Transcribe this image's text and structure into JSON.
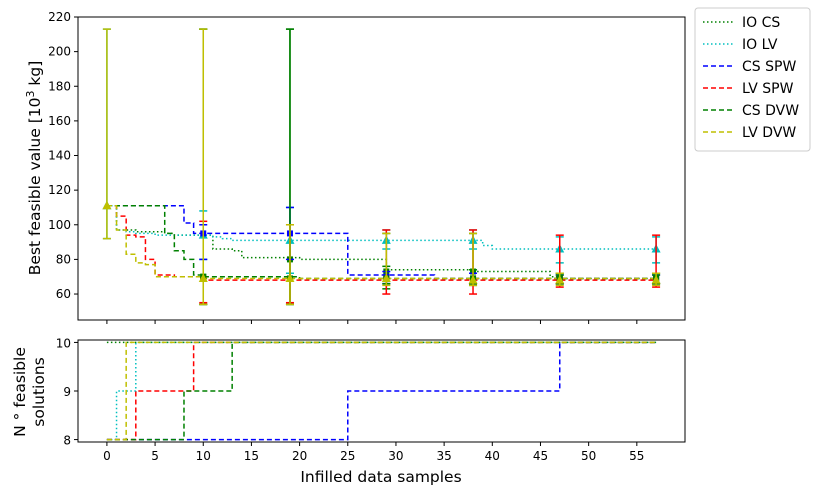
{
  "chart_data": [
    {
      "type": "line",
      "ylabel": "Best feasible value [10",
      "ylabel_sup": "3",
      "ylabel_end": " kg]",
      "xlim": [
        -3,
        60
      ],
      "ylim": [
        45,
        220
      ],
      "xticks": [
        0,
        5,
        10,
        15,
        20,
        25,
        30,
        35,
        40,
        45,
        50,
        55
      ],
      "yticks": [
        60,
        80,
        100,
        120,
        140,
        160,
        180,
        200,
        220
      ],
      "grid": false,
      "legend_position": "outside-right",
      "series": [
        {
          "name": "IO CS",
          "color": "#008000",
          "style": "dotted",
          "x": [
            0,
            1,
            3,
            6,
            7,
            10,
            11,
            13,
            14,
            19,
            20,
            28,
            29,
            37,
            38,
            46,
            47,
            57
          ],
          "y": [
            111,
            97,
            96,
            95,
            94,
            94,
            86,
            85,
            81,
            81,
            80,
            80,
            74,
            74,
            73,
            70,
            69,
            69
          ]
        },
        {
          "name": "IO LV",
          "color": "#00bfbf",
          "style": "dotted",
          "x": [
            0,
            1,
            2,
            3,
            5,
            10,
            11,
            12,
            13,
            29,
            38,
            39,
            40,
            57
          ],
          "y": [
            111,
            97,
            96,
            95,
            94,
            94,
            93,
            92,
            91,
            91,
            91,
            88,
            86,
            86
          ]
        },
        {
          "name": "CS SPW",
          "color": "#0000ff",
          "style": "dashed",
          "x": [
            0,
            7,
            8,
            9,
            19,
            24,
            25,
            33,
            34,
            57
          ],
          "y": [
            111,
            111,
            101,
            95,
            95,
            95,
            71,
            71,
            69,
            69
          ]
        },
        {
          "name": "LV SPW",
          "color": "#ff0000",
          "style": "dashed",
          "x": [
            0,
            1,
            2,
            3,
            4,
            5,
            7,
            10,
            57
          ],
          "y": [
            111,
            105,
            94,
            93,
            80,
            71,
            70,
            68,
            68
          ]
        },
        {
          "name": "CS DVW",
          "color": "#008000",
          "style": "dashed",
          "x": [
            0,
            2,
            3,
            4,
            5,
            6,
            7,
            8,
            9,
            10,
            13,
            14,
            19,
            20,
            57
          ],
          "y": [
            111,
            111,
            111,
            111,
            111,
            95,
            85,
            80,
            71,
            70,
            70,
            70,
            70,
            69,
            69
          ]
        },
        {
          "name": "LV DVW",
          "color": "#bfbf00",
          "style": "dashed",
          "x": [
            0,
            1,
            2,
            3,
            4,
            5,
            10,
            57
          ],
          "y": [
            111,
            97,
            83,
            78,
            77,
            70,
            69,
            69
          ]
        }
      ],
      "error_bars": [
        {
          "series": "IO CS",
          "x": [
            10,
            19,
            29,
            38,
            47,
            57
          ],
          "y": [
            70,
            80,
            73,
            73,
            69,
            69
          ],
          "lo": [
            54,
            54,
            63,
            65,
            66,
            66
          ],
          "hi": [
            213,
            213,
            95,
            95,
            72,
            72
          ]
        },
        {
          "series": "IO LV",
          "x": [
            0,
            10,
            19,
            29,
            38,
            47,
            57
          ],
          "y": [
            111,
            94,
            91,
            91,
            91,
            86,
            86
          ],
          "lo": [
            92,
            80,
            72,
            86,
            86,
            78,
            78
          ],
          "hi": [
            213,
            108,
            110,
            97,
            97,
            93,
            93
          ]
        },
        {
          "series": "CS SPW",
          "x": [
            10,
            19,
            29,
            38,
            47,
            57
          ],
          "y": [
            95,
            95,
            70,
            69,
            69,
            69
          ],
          "lo": [
            80,
            80,
            66,
            66,
            66,
            66
          ],
          "hi": [
            100,
            110,
            73,
            72,
            71,
            71
          ]
        },
        {
          "series": "LV SPW",
          "x": [
            10,
            19,
            29,
            38,
            47,
            57
          ],
          "y": [
            69,
            69,
            69,
            69,
            69,
            69
          ],
          "lo": [
            55,
            55,
            60,
            60,
            64,
            64
          ],
          "hi": [
            102,
            100,
            97,
            97,
            94,
            94
          ]
        },
        {
          "series": "CS DVW",
          "x": [
            10,
            19,
            29,
            38,
            47,
            57
          ],
          "y": [
            70,
            69,
            69,
            69,
            69,
            69
          ],
          "lo": [
            54,
            54,
            66,
            66,
            66,
            66
          ],
          "hi": [
            213,
            213,
            76,
            74,
            71,
            71
          ]
        },
        {
          "series": "LV DVW",
          "x": [
            0,
            10,
            19,
            29,
            38,
            47,
            57
          ],
          "y": [
            111,
            69,
            69,
            69,
            68,
            68,
            68
          ],
          "lo": [
            92,
            54,
            54,
            65,
            65,
            65,
            65
          ],
          "hi": [
            213,
            213,
            100,
            95,
            95,
            72,
            72
          ]
        }
      ]
    },
    {
      "type": "line",
      "xlabel": "Infilled data samples",
      "ylabel_line1": "N ° feasible",
      "ylabel_line2": "solutions",
      "xlim": [
        -3,
        60
      ],
      "ylim": [
        7.95,
        10.05
      ],
      "xticks": [
        0,
        5,
        10,
        15,
        20,
        25,
        30,
        35,
        40,
        45,
        50,
        55
      ],
      "yticks": [
        8,
        9,
        10
      ],
      "grid": false,
      "series": [
        {
          "name": "IO CS",
          "color": "#008000",
          "style": "dotted",
          "x": [
            0,
            57
          ],
          "y": [
            10,
            10
          ]
        },
        {
          "name": "IO LV",
          "color": "#00bfbf",
          "style": "dotted",
          "x": [
            0,
            1,
            2,
            3,
            57
          ],
          "y": [
            8,
            9,
            9,
            10,
            10
          ]
        },
        {
          "name": "CS SPW",
          "color": "#0000ff",
          "style": "dashed",
          "x": [
            0,
            24,
            25,
            46,
            47,
            57
          ],
          "y": [
            8,
            8,
            9,
            9,
            10,
            10
          ]
        },
        {
          "name": "LV SPW",
          "color": "#ff0000",
          "style": "dashed",
          "x": [
            0,
            2,
            3,
            8,
            9,
            57
          ],
          "y": [
            8,
            8,
            9,
            9,
            10,
            10
          ]
        },
        {
          "name": "CS DVW",
          "color": "#008000",
          "style": "dashed",
          "x": [
            0,
            7,
            8,
            12,
            13,
            57
          ],
          "y": [
            8,
            8,
            9,
            9,
            10,
            10
          ]
        },
        {
          "name": "LV DVW",
          "color": "#bfbf00",
          "style": "dashed",
          "x": [
            0,
            1,
            2,
            57
          ],
          "y": [
            8,
            8,
            10,
            10
          ]
        }
      ]
    }
  ]
}
